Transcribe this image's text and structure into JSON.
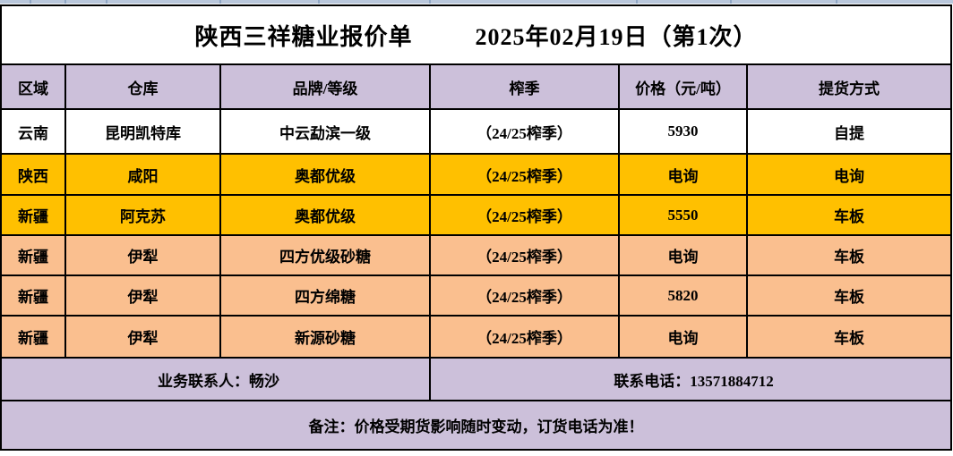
{
  "title": {
    "company": "陕西三祥糖业报价单",
    "date": "2025年02月19日（第1次）"
  },
  "table": {
    "columns": [
      "区域",
      "仓库",
      "品牌/等级",
      "榨季",
      "价格（元/吨）",
      "提货方式"
    ],
    "rows": [
      {
        "region": "云南",
        "warehouse": "昆明凯特库",
        "brand": "中云勐滨一级",
        "season": "（24/25榨季）",
        "price": "5930",
        "delivery": "自提",
        "bg": "#FFFFFF"
      },
      {
        "region": "陕西",
        "warehouse": "咸阳",
        "brand": "奥都优级",
        "season": "（24/25榨季）",
        "price": "电询",
        "delivery": "电询",
        "bg": "#FFC000"
      },
      {
        "region": "新疆",
        "warehouse": "阿克苏",
        "brand": "奥都优级",
        "season": "（24/25榨季）",
        "price": "5550",
        "delivery": "车板",
        "bg": "#FFC000"
      },
      {
        "region": "新疆",
        "warehouse": "伊犁",
        "brand": "四方优级砂糖",
        "season": "（24/25榨季）",
        "price": "电询",
        "delivery": "车板",
        "bg": "#FABF8F"
      },
      {
        "region": "新疆",
        "warehouse": "伊犁",
        "brand": "四方绵糖",
        "season": "（24/25榨季）",
        "price": "5820",
        "delivery": "车板",
        "bg": "#FABF8F"
      },
      {
        "region": "新疆",
        "warehouse": "伊犁",
        "brand": "新源砂糖",
        "season": "（24/25榨季）",
        "price": "电询",
        "delivery": "车板",
        "bg": "#FABF8F"
      }
    ]
  },
  "footer": {
    "contact_person": "业务联系人：畅沙",
    "phone": "联系电话：13571884712",
    "remark": "备注：价格受期货影响随时变动，订货电话为准！"
  },
  "colors": {
    "gold_row": "#FFC000",
    "peach_row": "#FABF8F",
    "lavender_row": "#CCC0DA",
    "top_strip": "#B9C7DB",
    "grid_border": "#000000"
  },
  "strip_ticks": [
    33,
    72,
    118,
    245,
    355,
    479,
    710,
    815,
    933
  ]
}
